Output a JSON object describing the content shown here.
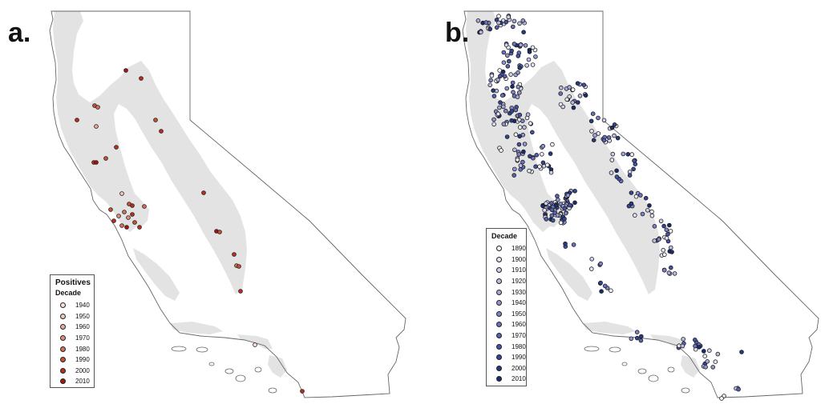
{
  "panels": [
    {
      "letter": "a.",
      "legend": {
        "title": "Positives",
        "subtitle": "Decade",
        "items": [
          {
            "label": "1940",
            "color": "#f7e2dc"
          },
          {
            "label": "1950",
            "color": "#efc7bb"
          },
          {
            "label": "1960",
            "color": "#e6ab9a"
          },
          {
            "label": "1970",
            "color": "#dd8e79"
          },
          {
            "label": "1980",
            "color": "#d37058"
          },
          {
            "label": "1990",
            "color": "#c65138"
          },
          {
            "label": "2000",
            "color": "#b8301c"
          },
          {
            "label": "2010",
            "color": "#a6160c"
          }
        ]
      }
    },
    {
      "letter": "b.",
      "legend": {
        "title": "",
        "subtitle": "Decade",
        "items": [
          {
            "label": "1890",
            "color": "#f4f4fb"
          },
          {
            "label": "1900",
            "color": "#e3e3f3"
          },
          {
            "label": "1910",
            "color": "#cfcfea"
          },
          {
            "label": "1920",
            "color": "#bbbbe1"
          },
          {
            "label": "1930",
            "color": "#a6a8d8"
          },
          {
            "label": "1940",
            "color": "#9295cf"
          },
          {
            "label": "1950",
            "color": "#7e83c6"
          },
          {
            "label": "1960",
            "color": "#6a71bd"
          },
          {
            "label": "1970",
            "color": "#5762b1"
          },
          {
            "label": "1980",
            "color": "#4453a3"
          },
          {
            "label": "1990",
            "color": "#344693"
          },
          {
            "label": "2000",
            "color": "#253a80"
          },
          {
            "label": "2010",
            "color": "#182d6c"
          }
        ]
      }
    }
  ],
  "colors": {
    "state_outline": "#666666",
    "range_fill": "#e3e3e3",
    "point_stroke": "#1a1a1a"
  }
}
